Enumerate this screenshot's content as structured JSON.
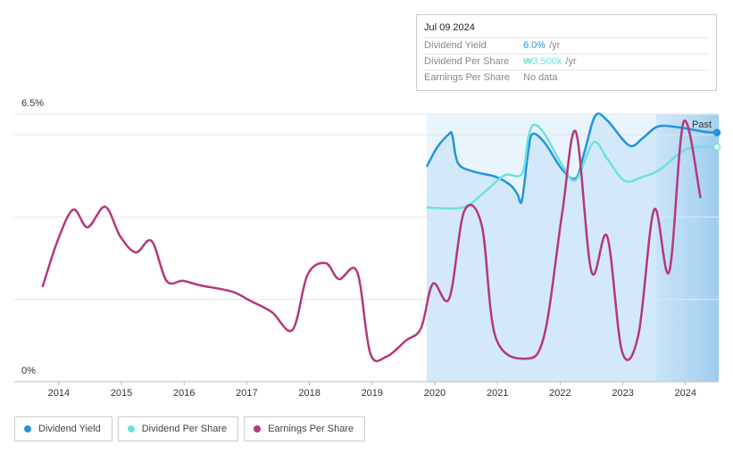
{
  "tooltip": {
    "date": "Jul 09 2024",
    "rows": [
      {
        "label": "Dividend Yield",
        "value": "6.0%",
        "unit": "/yr"
      },
      {
        "label": "Dividend Per Share",
        "value": "₩3.500k",
        "unit": "/yr"
      },
      {
        "label": "Earnings Per Share",
        "value": "No data"
      }
    ]
  },
  "chart_data": {
    "type": "line",
    "xlim": [
      2013.29,
      2024.53
    ],
    "xticks": [
      2014,
      2015,
      2016,
      2017,
      2018,
      2019,
      2020,
      2021,
      2022,
      2023,
      2024
    ],
    "ylim": [
      0,
      6.5
    ],
    "yticks": [
      {
        "value": 0,
        "label": "0%"
      },
      {
        "value": 2,
        "label": null
      },
      {
        "value": 4,
        "label": null
      },
      {
        "value": 6,
        "label": null
      },
      {
        "value": 6.5,
        "label": "6.5%"
      }
    ],
    "grid": true,
    "past_region": {
      "label": "Past",
      "start": 2023.53
    },
    "series": [
      {
        "name": "Dividend Yield",
        "color": "#2394df",
        "x": [
          2019.87,
          2020.04,
          2020.23,
          2020.28,
          2020.37,
          2020.61,
          2020.97,
          2021.21,
          2021.32,
          2021.39,
          2021.49,
          2021.56,
          2021.75,
          2022.03,
          2022.25,
          2022.39,
          2022.56,
          2022.75,
          2023.1,
          2023.32,
          2023.56,
          2023.89,
          2024.31,
          2024.53
        ],
        "values": [
          5.22,
          5.7,
          6.02,
          5.98,
          5.31,
          5.11,
          4.98,
          4.77,
          4.55,
          4.4,
          5.59,
          6.02,
          5.81,
          5.16,
          4.94,
          5.59,
          6.46,
          6.35,
          5.74,
          5.92,
          6.2,
          6.18,
          6.07,
          6.05
        ]
      },
      {
        "name": "Dividend Per Share",
        "color": "#6ce3d8",
        "x": [
          2019.87,
          2020.44,
          2020.75,
          2021.11,
          2021.39,
          2021.49,
          2021.58,
          2021.75,
          2022.03,
          2022.25,
          2022.53,
          2022.75,
          2023.03,
          2023.32,
          2023.6,
          2024.03,
          2024.53
        ],
        "values": [
          4.23,
          4.23,
          4.55,
          5.01,
          5.05,
          5.92,
          6.24,
          6.02,
          5.27,
          4.9,
          5.81,
          5.42,
          4.88,
          4.98,
          5.16,
          5.66,
          5.7
        ]
      },
      {
        "name": "Earnings Per Share",
        "color": "#b5387a",
        "x": [
          2013.74,
          2013.98,
          2014.23,
          2014.46,
          2014.74,
          2014.98,
          2015.23,
          2015.48,
          2015.72,
          2015.98,
          2016.26,
          2016.76,
          2017.05,
          2017.4,
          2017.73,
          2017.97,
          2018.26,
          2018.47,
          2018.76,
          2018.97,
          2019.23,
          2019.54,
          2019.78,
          2019.97,
          2020.23,
          2020.47,
          2020.75,
          2020.97,
          2021.46,
          2021.75,
          2022.03,
          2022.25,
          2022.5,
          2022.75,
          2022.99,
          2023.25,
          2023.5,
          2023.74,
          2023.97,
          2024.24
        ],
        "values": [
          2.3,
          3.42,
          4.18,
          3.75,
          4.25,
          3.53,
          3.14,
          3.42,
          2.45,
          2.45,
          2.34,
          2.19,
          1.97,
          1.69,
          1.26,
          2.6,
          2.88,
          2.49,
          2.67,
          0.69,
          0.61,
          1.0,
          1.3,
          2.38,
          2.02,
          4.14,
          3.79,
          1.08,
          0.56,
          1.15,
          4.07,
          6.07,
          2.67,
          3.53,
          0.72,
          1.15,
          4.18,
          2.67,
          6.31,
          4.46
        ]
      }
    ]
  }
}
